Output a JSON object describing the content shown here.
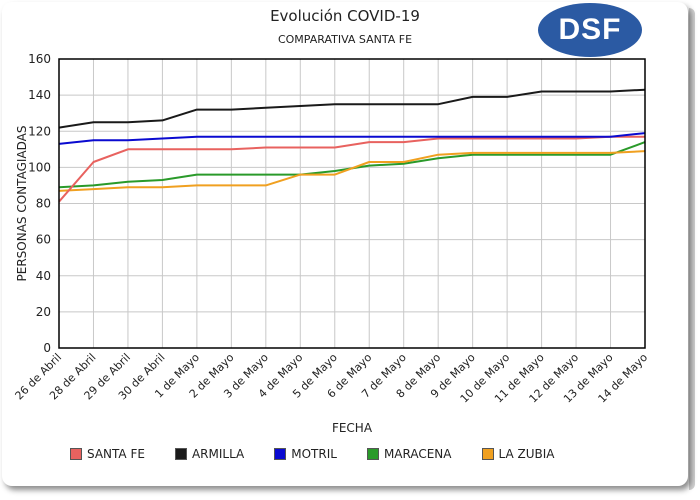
{
  "logo": {
    "text": "DSF",
    "color": "#2b5aa3"
  },
  "chart_data": {
    "type": "line",
    "title": "Evolución COVID-19",
    "subtitle": "COMPARATIVA SANTA FE",
    "xlabel": "FECHA",
    "ylabel": "PERSONAS CONTAGIADAS",
    "ylim": [
      0,
      160
    ],
    "yticks": [
      0,
      20,
      40,
      60,
      80,
      100,
      120,
      140,
      160
    ],
    "grid": true,
    "legend_position": "bottom",
    "categories": [
      "26 de Abril",
      "28 de Abril",
      "29 de Abril",
      "30 de Abril",
      "1 de Mayo",
      "2 de Mayo",
      "3 de Mayo",
      "4 de Mayo",
      "5 de Mayo",
      "6 de Mayo",
      "7 de Mayo",
      "8 de Mayo",
      "9 de Mayo",
      "10 de Mayo",
      "11 de Mayo",
      "12 de Mayo",
      "13 de Mayo",
      "14 de Mayo"
    ],
    "series": [
      {
        "name": "SANTA FE",
        "color": "#e8625f",
        "values": [
          81,
          103,
          110,
          110,
          110,
          110,
          111,
          111,
          111,
          114,
          114,
          116,
          116,
          116,
          116,
          116,
          117,
          117
        ]
      },
      {
        "name": "ARMILLA",
        "color": "#1a1a1a",
        "values": [
          122,
          125,
          125,
          126,
          132,
          132,
          133,
          134,
          135,
          135,
          135,
          135,
          139,
          139,
          142,
          142,
          142,
          143
        ]
      },
      {
        "name": "MOTRIL",
        "color": "#0a0ad0",
        "values": [
          113,
          115,
          115,
          116,
          117,
          117,
          117,
          117,
          117,
          117,
          117,
          117,
          117,
          117,
          117,
          117,
          117,
          119
        ]
      },
      {
        "name": "MARACENA",
        "color": "#2a9a2a",
        "values": [
          89,
          90,
          92,
          93,
          96,
          96,
          96,
          96,
          98,
          101,
          102,
          105,
          107,
          107,
          107,
          107,
          107,
          114
        ]
      },
      {
        "name": "LA ZUBIA",
        "color": "#f0a020",
        "values": [
          87,
          88,
          89,
          89,
          90,
          90,
          90,
          96,
          96,
          103,
          103,
          107,
          108,
          108,
          108,
          108,
          108,
          109
        ]
      }
    ]
  }
}
